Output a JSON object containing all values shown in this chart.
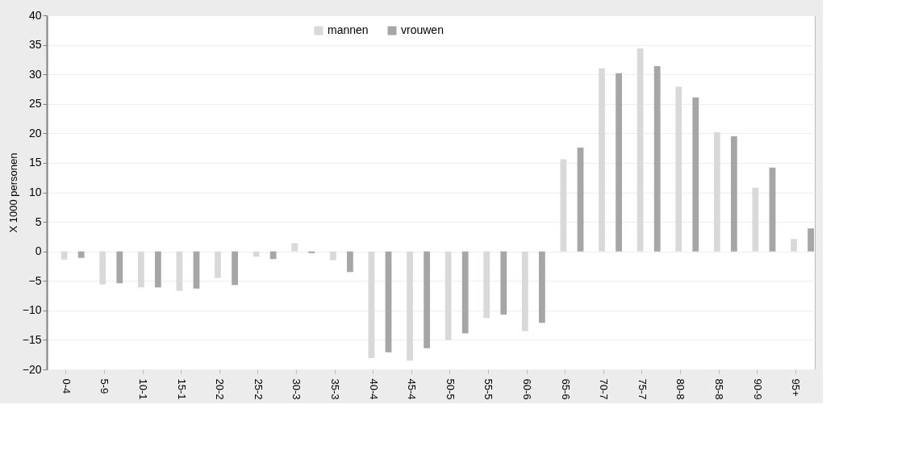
{
  "chart_data": {
    "type": "bar",
    "ylabel": "X 1000 personen",
    "categories": [
      "0-4",
      "5-9",
      "10-1",
      "15-1",
      "20-2",
      "25-2",
      "30-3",
      "35-3",
      "40-4",
      "45-4",
      "50-5",
      "55-5",
      "60-6",
      "65-6",
      "70-7",
      "75-7",
      "80-8",
      "85-8",
      "90-9",
      "95+"
    ],
    "series": [
      {
        "name": "mannen",
        "color": "#d9d9d9",
        "values": [
          -1.4,
          -5.6,
          -6.1,
          -6.7,
          -4.5,
          -0.9,
          1.4,
          -1.5,
          -18.1,
          -18.5,
          -15,
          -11.3,
          -13.5,
          15.6,
          31,
          34.4,
          27.9,
          20.2,
          10.8,
          2.1
        ]
      },
      {
        "name": "vrouwen",
        "color": "#a6a6a6",
        "values": [
          -1.1,
          -5.4,
          -6.1,
          -6.3,
          -5.7,
          -1.3,
          -0.3,
          -3.5,
          -17.1,
          -16.4,
          -13.9,
          -10.7,
          -12.1,
          17.6,
          30.2,
          31.4,
          26.1,
          19.5,
          14.2,
          3.9
        ]
      }
    ],
    "ylim": [
      -20,
      40
    ],
    "yticks": [
      -20,
      -15,
      -10,
      -5,
      0,
      5,
      10,
      15,
      20,
      25,
      30,
      35,
      40
    ],
    "grid": "y",
    "legend": "top"
  }
}
